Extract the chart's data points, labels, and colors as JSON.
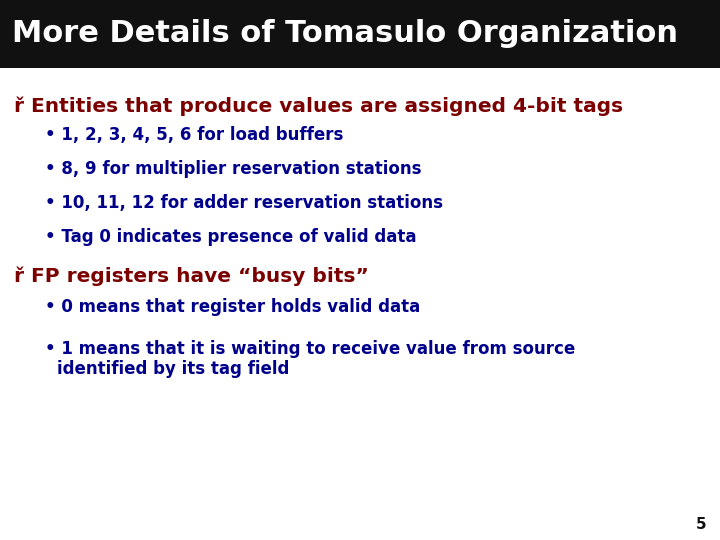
{
  "title": "More Details of Tomasulo Organization",
  "title_bg": "#111111",
  "title_color": "#ffffff",
  "title_fontsize": 22,
  "bg_color": "#ffffff",
  "bullet1_header": "ř Entities that produce values are assigned 4-bit tags",
  "bullet1_color": "#7b0000",
  "bullet1_fontsize": 14.5,
  "sub_bullets1": [
    "1, 2, 3, 4, 5, 6 for load buffers",
    "8, 9 for multiplier reservation stations",
    "10, 11, 12 for adder reservation stations",
    "Tag 0 indicates presence of valid data"
  ],
  "sub_bullet1_color": "#00008b",
  "sub_bullet1_fontsize": 12,
  "bullet2_header": "ř FP registers have “busy bits”",
  "bullet2_color": "#7b0000",
  "bullet2_fontsize": 14.5,
  "sub_bullets2_line1": "0 means that register holds valid data",
  "sub_bullets2_line2a": "1 means that it is waiting to receive value from source",
  "sub_bullets2_line2b": "    identified by its tag field",
  "sub_bullet2_color": "#00008b",
  "sub_bullet2_fontsize": 12,
  "page_number": "5",
  "page_num_color": "#111111",
  "page_num_fontsize": 11
}
